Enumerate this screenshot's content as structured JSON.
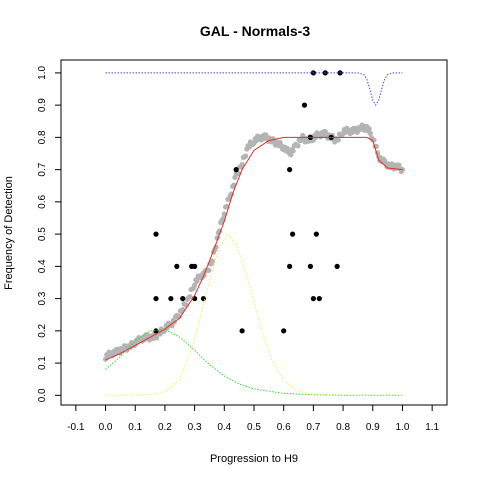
{
  "chart_data": {
    "type": "scatter",
    "title": "GAL - Normals-3",
    "xlabel": "Progression to H9",
    "ylabel": "Frequency of Detection",
    "xlim": [
      -0.15,
      1.15
    ],
    "ylim": [
      -0.03,
      1.04
    ],
    "x_ticks": [
      "-0.1",
      "0.0",
      "0.1",
      "0.2",
      "0.3",
      "0.4",
      "0.5",
      "0.6",
      "0.7",
      "0.8",
      "0.9",
      "1.0",
      "1.1"
    ],
    "y_ticks": [
      "0.0",
      "0.1",
      "0.2",
      "0.3",
      "0.4",
      "0.5",
      "0.6",
      "0.7",
      "0.8",
      "0.9",
      "1.0"
    ],
    "grid": false,
    "legend": "none",
    "series": [
      {
        "kind": "smoothed-points",
        "color": "#b4b4b4",
        "points": [
          [
            0.0,
            0.12
          ],
          [
            0.02,
            0.13
          ],
          [
            0.04,
            0.135
          ],
          [
            0.06,
            0.145
          ],
          [
            0.08,
            0.15
          ],
          [
            0.1,
            0.165
          ],
          [
            0.12,
            0.175
          ],
          [
            0.14,
            0.18
          ],
          [
            0.16,
            0.18
          ],
          [
            0.18,
            0.19
          ],
          [
            0.2,
            0.21
          ],
          [
            0.22,
            0.22
          ],
          [
            0.24,
            0.24
          ],
          [
            0.26,
            0.27
          ],
          [
            0.28,
            0.3
          ],
          [
            0.3,
            0.35
          ],
          [
            0.32,
            0.37
          ],
          [
            0.34,
            0.38
          ],
          [
            0.36,
            0.42
          ],
          [
            0.38,
            0.5
          ],
          [
            0.4,
            0.57
          ],
          [
            0.42,
            0.62
          ],
          [
            0.44,
            0.68
          ],
          [
            0.46,
            0.72
          ],
          [
            0.48,
            0.77
          ],
          [
            0.5,
            0.79
          ],
          [
            0.52,
            0.8
          ],
          [
            0.54,
            0.8
          ],
          [
            0.56,
            0.79
          ],
          [
            0.58,
            0.78
          ],
          [
            0.6,
            0.77
          ],
          [
            0.62,
            0.75
          ],
          [
            0.64,
            0.77
          ],
          [
            0.66,
            0.8
          ],
          [
            0.68,
            0.79
          ],
          [
            0.7,
            0.8
          ],
          [
            0.72,
            0.81
          ],
          [
            0.74,
            0.81
          ],
          [
            0.76,
            0.8
          ],
          [
            0.78,
            0.79
          ],
          [
            0.8,
            0.82
          ],
          [
            0.82,
            0.82
          ],
          [
            0.84,
            0.82
          ],
          [
            0.86,
            0.83
          ],
          [
            0.88,
            0.83
          ],
          [
            0.9,
            0.8
          ],
          [
            0.92,
            0.74
          ],
          [
            0.94,
            0.72
          ],
          [
            0.96,
            0.71
          ],
          [
            0.98,
            0.71
          ],
          [
            1.0,
            0.7
          ]
        ]
      },
      {
        "kind": "observed-points",
        "color": "#000000",
        "points": [
          [
            0.17,
            0.5
          ],
          [
            0.17,
            0.3
          ],
          [
            0.17,
            0.2
          ],
          [
            0.22,
            0.3
          ],
          [
            0.24,
            0.4
          ],
          [
            0.26,
            0.3
          ],
          [
            0.29,
            0.4
          ],
          [
            0.3,
            0.3
          ],
          [
            0.3,
            0.4
          ],
          [
            0.33,
            0.3
          ],
          [
            0.44,
            0.7
          ],
          [
            0.46,
            0.2
          ],
          [
            0.6,
            0.2
          ],
          [
            0.62,
            0.4
          ],
          [
            0.63,
            0.5
          ],
          [
            0.62,
            0.7
          ],
          [
            0.67,
            0.9
          ],
          [
            0.69,
            0.8
          ],
          [
            0.69,
            0.4
          ],
          [
            0.7,
            0.3
          ],
          [
            0.71,
            0.5
          ],
          [
            0.72,
            0.3
          ],
          [
            0.7,
            1.0
          ],
          [
            0.74,
            1.0
          ],
          [
            0.76,
            0.8
          ],
          [
            0.78,
            0.4
          ],
          [
            0.79,
            1.0
          ]
        ]
      },
      {
        "kind": "fitted-curve",
        "color": "#e03030",
        "points": [
          [
            0.0,
            0.11
          ],
          [
            0.05,
            0.13
          ],
          [
            0.1,
            0.155
          ],
          [
            0.15,
            0.18
          ],
          [
            0.2,
            0.205
          ],
          [
            0.25,
            0.24
          ],
          [
            0.3,
            0.31
          ],
          [
            0.33,
            0.37
          ],
          [
            0.36,
            0.44
          ],
          [
            0.4,
            0.54
          ],
          [
            0.43,
            0.63
          ],
          [
            0.46,
            0.7
          ],
          [
            0.5,
            0.76
          ],
          [
            0.55,
            0.79
          ],
          [
            0.6,
            0.8
          ],
          [
            0.7,
            0.8
          ],
          [
            0.8,
            0.8
          ],
          [
            0.88,
            0.8
          ],
          [
            0.9,
            0.79
          ],
          [
            0.92,
            0.73
          ],
          [
            0.95,
            0.705
          ],
          [
            1.0,
            0.7
          ]
        ]
      },
      {
        "kind": "component-curve",
        "color": "#33dd33",
        "dash": "dotted",
        "points": [
          [
            0.0,
            0.08
          ],
          [
            0.05,
            0.12
          ],
          [
            0.1,
            0.17
          ],
          [
            0.15,
            0.2
          ],
          [
            0.2,
            0.205
          ],
          [
            0.25,
            0.18
          ],
          [
            0.3,
            0.14
          ],
          [
            0.35,
            0.095
          ],
          [
            0.4,
            0.06
          ],
          [
            0.45,
            0.035
          ],
          [
            0.5,
            0.02
          ],
          [
            0.6,
            0.006
          ],
          [
            0.7,
            0.002
          ],
          [
            0.8,
            0.0
          ],
          [
            1.0,
            0.0
          ]
        ]
      },
      {
        "kind": "component-curve",
        "color": "#eeee66",
        "dash": "dotted",
        "points": [
          [
            0.0,
            0.0
          ],
          [
            0.15,
            0.002
          ],
          [
            0.2,
            0.01
          ],
          [
            0.25,
            0.05
          ],
          [
            0.3,
            0.17
          ],
          [
            0.34,
            0.32
          ],
          [
            0.38,
            0.45
          ],
          [
            0.41,
            0.5
          ],
          [
            0.44,
            0.47
          ],
          [
            0.48,
            0.36
          ],
          [
            0.52,
            0.22
          ],
          [
            0.56,
            0.11
          ],
          [
            0.6,
            0.045
          ],
          [
            0.65,
            0.013
          ],
          [
            0.7,
            0.003
          ],
          [
            0.8,
            0.0
          ],
          [
            1.0,
            0.0
          ]
        ]
      },
      {
        "kind": "component-curve",
        "color": "#4444ff",
        "dash": "dotted",
        "points": [
          [
            0.0,
            1.0
          ],
          [
            0.85,
            1.0
          ],
          [
            0.87,
            0.995
          ],
          [
            0.88,
            0.98
          ],
          [
            0.89,
            0.95
          ],
          [
            0.9,
            0.915
          ],
          [
            0.91,
            0.9
          ],
          [
            0.92,
            0.915
          ],
          [
            0.93,
            0.95
          ],
          [
            0.94,
            0.98
          ],
          [
            0.95,
            0.995
          ],
          [
            0.97,
            1.0
          ],
          [
            1.0,
            1.0
          ]
        ]
      }
    ]
  }
}
